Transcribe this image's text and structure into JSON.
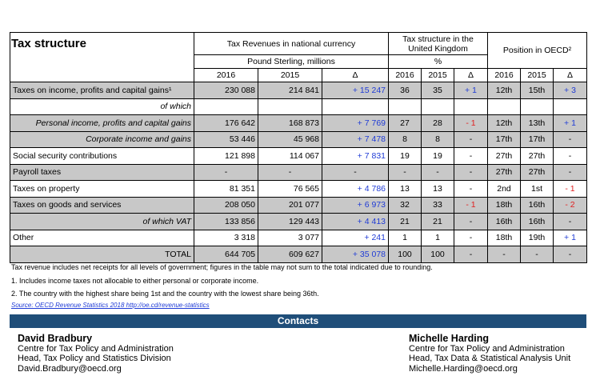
{
  "title": "Tax structure",
  "header": {
    "revenues": "Tax Revenues in national currency",
    "structure": "Tax structure in the United Kingdom",
    "position": "Position in OECD²",
    "currency": "Pound Sterling, millions",
    "percent": "%",
    "y2016": "2016",
    "y2015": "2015",
    "delta": "Δ"
  },
  "rows": [
    {
      "label": "Taxes on income, profits and capital gains¹",
      "v2016": "230 088",
      "v2015": "214 841",
      "d": "+ 15 247",
      "p2016": "36",
      "p2015": "35",
      "pd": "+ 1",
      "r2016": "12th",
      "r2015": "15th",
      "rd": "+ 3"
    },
    {
      "label": "of which",
      "v2016": "",
      "v2015": "",
      "d": "",
      "p2016": "",
      "p2015": "",
      "pd": "",
      "r2016": "",
      "r2015": "",
      "rd": ""
    },
    {
      "label": "Personal income, profits and capital gains",
      "v2016": "176 642",
      "v2015": "168 873",
      "d": "+ 7 769",
      "p2016": "27",
      "p2015": "28",
      "pd": "- 1",
      "r2016": "12th",
      "r2015": "13th",
      "rd": "+ 1"
    },
    {
      "label": "Corporate income and gains",
      "v2016": "53 446",
      "v2015": "45 968",
      "d": "+ 7 478",
      "p2016": "8",
      "p2015": "8",
      "pd": "-",
      "r2016": "17th",
      "r2015": "17th",
      "rd": "-"
    },
    {
      "label": "Social security contributions",
      "v2016": "121 898",
      "v2015": "114 067",
      "d": "+ 7 831",
      "p2016": "19",
      "p2015": "19",
      "pd": "-",
      "r2016": "27th",
      "r2015": "27th",
      "rd": "-"
    },
    {
      "label": "Payroll taxes",
      "v2016": "-",
      "v2015": "-",
      "d": "-",
      "p2016": "-",
      "p2015": "-",
      "pd": "-",
      "r2016": "27th",
      "r2015": "27th",
      "rd": "-"
    },
    {
      "label": "Taxes on property",
      "v2016": "81 351",
      "v2015": "76 565",
      "d": "+ 4 786",
      "p2016": "13",
      "p2015": "13",
      "pd": "-",
      "r2016": "2nd",
      "r2015": "1st",
      "rd": "- 1"
    },
    {
      "label": "Taxes on goods and services",
      "v2016": "208 050",
      "v2015": "201 077",
      "d": "+ 6 973",
      "p2016": "32",
      "p2015": "33",
      "pd": "- 1",
      "r2016": "18th",
      "r2015": "16th",
      "rd": "- 2"
    },
    {
      "label": "of which VAT",
      "v2016": "133 856",
      "v2015": "129 443",
      "d": "+ 4 413",
      "p2016": "21",
      "p2015": "21",
      "pd": "-",
      "r2016": "16th",
      "r2015": "16th",
      "rd": "-"
    },
    {
      "label": "Other",
      "v2016": "3 318",
      "v2015": "3 077",
      "d": "+ 241",
      "p2016": "1",
      "p2015": "1",
      "pd": "-",
      "r2016": "18th",
      "r2015": "19th",
      "rd": "+ 1"
    },
    {
      "label": "TOTAL",
      "v2016": "644 705",
      "v2015": "609 627",
      "d": "+ 35 078",
      "p2016": "100",
      "p2015": "100",
      "pd": "-",
      "r2016": "-",
      "r2015": "-",
      "rd": "-"
    }
  ],
  "notes": {
    "n0": "Tax revenue includes net receipts for all levels of government; figures in the table may not sum to the total indicated due to rounding.",
    "n1": "1. Includes income taxes not allocable to either personal or corporate income.",
    "n2": "2. The country with the highest share being 1st and the country with the lowest share being 36th.",
    "source": "Source: OECD Revenue Statistics 2018 http://oe.cd/revenue-statistics"
  },
  "contacts": {
    "heading": "Contacts",
    "left": {
      "name": "David Bradbury",
      "line1": "Centre for Tax Policy and Administration",
      "line2": "Head, Tax Policy and Statistics Division",
      "email": "David.Bradbury@oecd.org"
    },
    "right": {
      "name": "Michelle Harding",
      "line1": "Centre for Tax Policy and Administration",
      "line2": "Head, Tax Data & Statistical Analysis Unit",
      "email": "Michelle.Harding@oecd.org"
    }
  },
  "colors": {
    "positive": "#1f3bd6",
    "negative": "#e02020",
    "shade": "#c8c8c8",
    "contacts_bar": "#1f4e79"
  }
}
